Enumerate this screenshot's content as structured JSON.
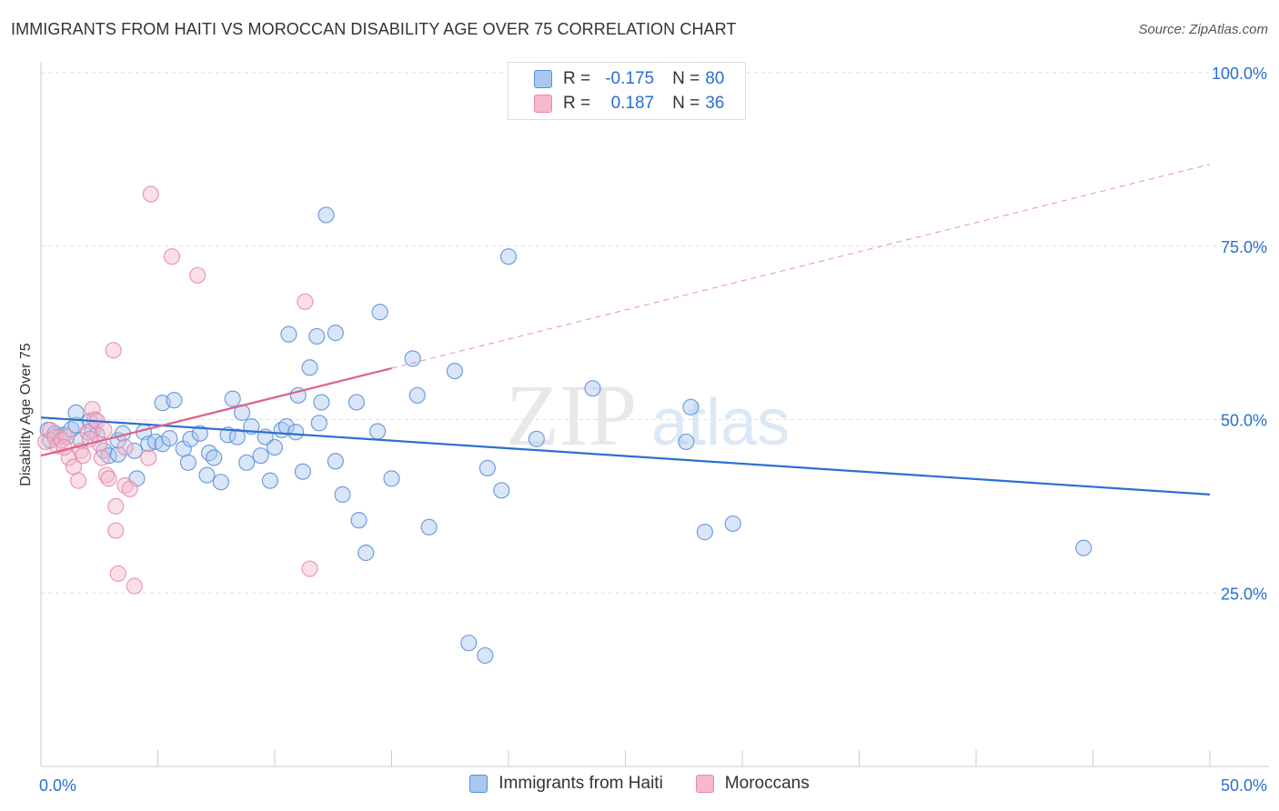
{
  "header": {
    "title": "IMMIGRANTS FROM HAITI VS MOROCCAN DISABILITY AGE OVER 75 CORRELATION CHART",
    "source": "Source: ZipAtlas.com"
  },
  "watermark": {
    "zip": "ZIP",
    "atlas": "atlas"
  },
  "legend": {
    "rows": [
      {
        "r_label": "R =",
        "r_value": "-0.175",
        "n_label": "N =",
        "n_value": "80"
      },
      {
        "r_label": "R =",
        "r_value": "0.187",
        "n_label": "N =",
        "n_value": "36"
      }
    ]
  },
  "bottom_legend": {
    "series1": "Immigrants from Haiti",
    "series2": "Moroccans"
  },
  "colors": {
    "blue_fill": "#a8c8f0",
    "blue_stroke": "#5b8fd6",
    "blue_line": "#2b6fd0",
    "pink_fill": "#f5b8cc",
    "pink_stroke": "#e58aa8",
    "pink_line": "#e0608a",
    "axis_label": "#2a6fcf",
    "grid": "#dddddd"
  },
  "chart_data": {
    "type": "scatter",
    "title": "IMMIGRANTS FROM HAITI VS MOROCCAN DISABILITY AGE OVER 75 CORRELATION CHART",
    "xlabel": "",
    "ylabel": "Disability Age Over 75",
    "xlim": [
      0,
      50
    ],
    "ylim": [
      0,
      100
    ],
    "x_tick_labels": [
      "0.0%",
      "50.0%"
    ],
    "y_tick_labels": [
      "100.0%",
      "75.0%",
      "50.0%",
      "25.0%"
    ],
    "y_tick_values": [
      100,
      75,
      50,
      25
    ],
    "grid": true,
    "legend_position": "top-center",
    "series": [
      {
        "name": "Immigrants from Haiti",
        "r": -0.175,
        "n": 80,
        "trend": {
          "x": [
            0,
            50
          ],
          "y": [
            50.3,
            39.2
          ],
          "dashed_extension": false
        },
        "points": [
          [
            0.3,
            48.5
          ],
          [
            0.6,
            48.0
          ],
          [
            0.8,
            47.5
          ],
          [
            1.0,
            47.8
          ],
          [
            1.3,
            48.6
          ],
          [
            1.5,
            49.2
          ],
          [
            1.5,
            51.0
          ],
          [
            1.7,
            47.0
          ],
          [
            2.1,
            49.8
          ],
          [
            2.2,
            48.5
          ],
          [
            2.4,
            47.8
          ],
          [
            2.7,
            45.5
          ],
          [
            2.9,
            44.8
          ],
          [
            3.3,
            45.0
          ],
          [
            3.3,
            47.0
          ],
          [
            3.5,
            48.0
          ],
          [
            4.0,
            45.5
          ],
          [
            4.1,
            41.5
          ],
          [
            4.4,
            48.2
          ],
          [
            4.6,
            46.5
          ],
          [
            4.9,
            46.8
          ],
          [
            5.2,
            46.5
          ],
          [
            5.2,
            52.4
          ],
          [
            5.5,
            47.3
          ],
          [
            5.7,
            52.8
          ],
          [
            6.1,
            45.8
          ],
          [
            6.3,
            43.8
          ],
          [
            6.4,
            47.2
          ],
          [
            6.8,
            48.0
          ],
          [
            7.1,
            42.0
          ],
          [
            7.2,
            45.2
          ],
          [
            7.4,
            44.5
          ],
          [
            7.7,
            41.0
          ],
          [
            8.0,
            47.8
          ],
          [
            8.2,
            53.0
          ],
          [
            8.4,
            47.5
          ],
          [
            8.6,
            51.0
          ],
          [
            8.8,
            43.8
          ],
          [
            9.0,
            49.0
          ],
          [
            9.4,
            44.8
          ],
          [
            9.6,
            47.5
          ],
          [
            9.8,
            41.2
          ],
          [
            10.0,
            46.0
          ],
          [
            10.3,
            48.5
          ],
          [
            10.5,
            49.0
          ],
          [
            10.6,
            62.3
          ],
          [
            10.9,
            48.2
          ],
          [
            11.0,
            53.5
          ],
          [
            11.2,
            42.5
          ],
          [
            11.5,
            57.5
          ],
          [
            11.8,
            62.0
          ],
          [
            11.9,
            49.5
          ],
          [
            12.0,
            52.5
          ],
          [
            12.2,
            79.5
          ],
          [
            12.6,
            62.5
          ],
          [
            12.6,
            44.0
          ],
          [
            12.9,
            39.2
          ],
          [
            13.5,
            52.5
          ],
          [
            13.6,
            35.5
          ],
          [
            13.9,
            30.8
          ],
          [
            14.4,
            48.3
          ],
          [
            14.5,
            65.5
          ],
          [
            15.0,
            41.5
          ],
          [
            15.9,
            58.8
          ],
          [
            16.1,
            53.5
          ],
          [
            16.6,
            34.5
          ],
          [
            17.7,
            57.0
          ],
          [
            18.3,
            17.8
          ],
          [
            19.0,
            16.0
          ],
          [
            19.1,
            43.0
          ],
          [
            19.7,
            39.8
          ],
          [
            20.0,
            73.5
          ],
          [
            21.2,
            47.2
          ],
          [
            23.6,
            54.5
          ],
          [
            27.6,
            46.8
          ],
          [
            27.8,
            51.8
          ],
          [
            28.4,
            33.8
          ],
          [
            29.6,
            35.0
          ],
          [
            44.6,
            31.5
          ],
          [
            0.4,
            47.0
          ]
        ]
      },
      {
        "name": "Moroccans",
        "r": 0.187,
        "n": 36,
        "trend": {
          "x": [
            0,
            15
          ],
          "y": [
            44.8,
            57.4
          ],
          "dashed_extension": true,
          "dashed_to": [
            50,
            86.8
          ]
        },
        "points": [
          [
            0.2,
            46.8
          ],
          [
            0.4,
            48.5
          ],
          [
            0.6,
            47.5
          ],
          [
            0.7,
            46.2
          ],
          [
            0.9,
            47.0
          ],
          [
            1.1,
            47.5
          ],
          [
            1.2,
            44.5
          ],
          [
            1.4,
            43.2
          ],
          [
            1.6,
            41.2
          ],
          [
            1.7,
            45.5
          ],
          [
            1.8,
            44.8
          ],
          [
            2.0,
            48.2
          ],
          [
            2.2,
            51.5
          ],
          [
            2.3,
            50.0
          ],
          [
            2.4,
            49.8
          ],
          [
            2.5,
            46.5
          ],
          [
            2.6,
            44.5
          ],
          [
            2.7,
            48.5
          ],
          [
            2.8,
            42.0
          ],
          [
            2.9,
            41.5
          ],
          [
            3.1,
            60.0
          ],
          [
            3.2,
            37.5
          ],
          [
            3.2,
            34.0
          ],
          [
            3.3,
            27.8
          ],
          [
            3.6,
            46.0
          ],
          [
            3.6,
            40.5
          ],
          [
            3.8,
            40.0
          ],
          [
            4.0,
            26.0
          ],
          [
            4.6,
            44.5
          ],
          [
            4.7,
            82.5
          ],
          [
            5.6,
            73.5
          ],
          [
            6.7,
            70.8
          ],
          [
            11.3,
            67.0
          ],
          [
            11.5,
            28.5
          ],
          [
            2.1,
            47.2
          ],
          [
            1.0,
            46.0
          ]
        ]
      }
    ]
  }
}
